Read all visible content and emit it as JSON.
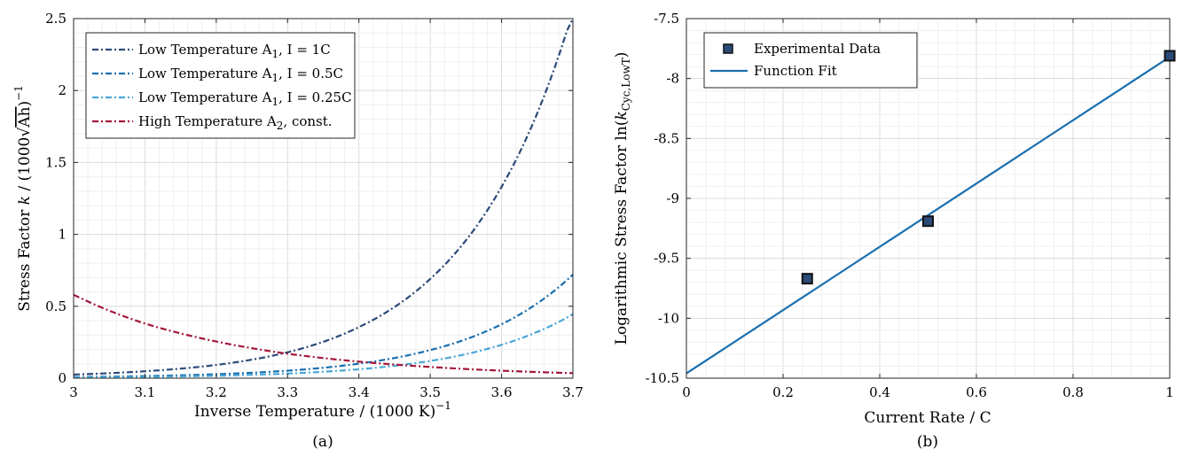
{
  "chart_data": [
    {
      "type": "line",
      "panel_label": "(a)",
      "xlabel": {
        "text": "Inverse Temperature / (1000 K)",
        "sup": "−1"
      },
      "ylabel": {
        "pre": "Stress Factor ",
        "var": "k",
        "mid": " / (1000",
        "root": "Ah",
        "post": ")",
        "sup": "−1"
      },
      "xlim": [
        3,
        3.7
      ],
      "ylim": [
        0,
        2.5
      ],
      "xticks": [
        "3",
        "3.1",
        "3.2",
        "3.3",
        "3.4",
        "3.5",
        "3.6",
        "3.7"
      ],
      "yticks": [
        "0",
        "0.5",
        "1",
        "1.5",
        "2",
        "2.5"
      ],
      "grid": true,
      "minor_grid": true,
      "legend_position": "top-left",
      "series": [
        {
          "name": "Low Temperature A1, I = 1C",
          "label_parts": [
            "Low Temperature A",
            "1",
            ", I = 1C"
          ],
          "color": "#2b4a78",
          "dash": "dashdot",
          "x": [
            3.0,
            3.1,
            3.2,
            3.3,
            3.4,
            3.5,
            3.6,
            3.7
          ],
          "y": [
            0.025,
            0.048,
            0.092,
            0.18,
            0.355,
            0.69,
            1.33,
            2.55
          ]
        },
        {
          "name": "Low Temperature A1, I = 0.5C",
          "label_parts": [
            "Low Temperature A",
            "1",
            ", I = 0.5C"
          ],
          "color": "#1a6fb0",
          "dash": "dashdot",
          "x": [
            3.0,
            3.1,
            3.2,
            3.3,
            3.4,
            3.5,
            3.6,
            3.7
          ],
          "y": [
            0.0075,
            0.0145,
            0.0275,
            0.052,
            0.101,
            0.195,
            0.375,
            0.72
          ]
        },
        {
          "name": "Low Temperature A1, I = 0.25C",
          "label_parts": [
            "Low Temperature A",
            "1",
            ", I = 0.25C"
          ],
          "color": "#4aa7d6",
          "dash": "dashdot",
          "x": [
            3.0,
            3.1,
            3.2,
            3.3,
            3.4,
            3.5,
            3.6,
            3.7
          ],
          "y": [
            0.0045,
            0.009,
            0.017,
            0.032,
            0.062,
            0.12,
            0.232,
            0.445
          ]
        },
        {
          "name": "High Temperature A2, const.",
          "label_parts": [
            "High Temperature A",
            "2",
            ", const."
          ],
          "color": "#a3163a",
          "dash": "dashdot",
          "x": [
            3.0,
            3.1,
            3.2,
            3.3,
            3.4,
            3.5,
            3.6,
            3.7
          ],
          "y": [
            0.58,
            0.38,
            0.255,
            0.17,
            0.115,
            0.078,
            0.052,
            0.035
          ]
        }
      ]
    },
    {
      "type": "scatter",
      "panel_label": "(b)",
      "xlabel": {
        "text": "Current Rate / C"
      },
      "ylabel": {
        "pre": "Logarithmic Stress Factor ln(",
        "var": "k",
        "sub": "Cyc,LowT",
        "post": ")"
      },
      "xlim": [
        0,
        1
      ],
      "ylim": [
        -10.5,
        -7.5
      ],
      "xticks": [
        "0",
        "0.2",
        "0.4",
        "0.6",
        "0.8",
        "1"
      ],
      "yticks": [
        "-10.5",
        "-10",
        "-9.5",
        "-9",
        "-8.5",
        "-8",
        "-7.5"
      ],
      "grid": true,
      "minor_grid": true,
      "legend_position": "top-left",
      "series": [
        {
          "name": "Experimental Data",
          "kind": "marker",
          "color": "#2b4a78",
          "x": [
            0.25,
            0.5,
            1.0
          ],
          "y": [
            -9.67,
            -9.19,
            -7.81
          ]
        },
        {
          "name": "Function Fit",
          "kind": "line",
          "color": "#1a6fb0",
          "x": [
            0,
            1
          ],
          "y": [
            -10.46,
            -7.82
          ]
        }
      ]
    }
  ]
}
